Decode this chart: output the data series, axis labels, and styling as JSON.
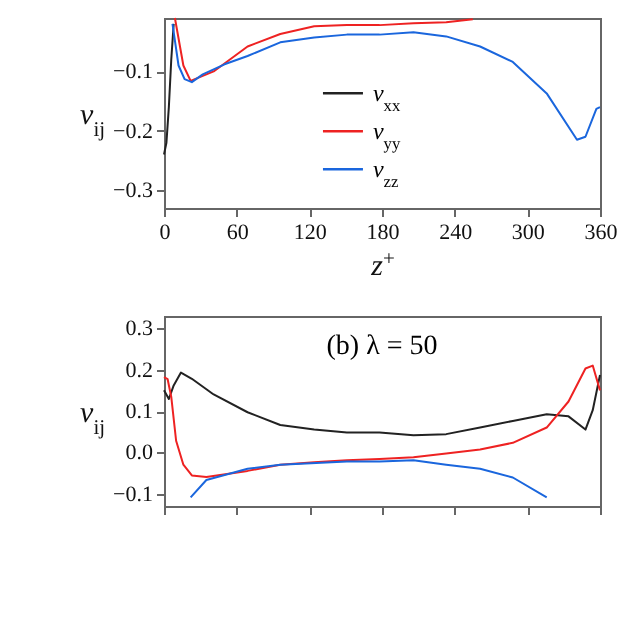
{
  "chart_data": [
    {
      "type": "line",
      "xlabel": "z$^{+}$",
      "ylabel": "v$_{ij}$",
      "xlim": [
        0,
        360
      ],
      "xticks": [
        0,
        60,
        120,
        180,
        240,
        300,
        360
      ],
      "ylim": [
        -0.33,
        -0.01
      ],
      "yticks": [
        -0.1,
        -0.2,
        -0.3
      ],
      "legend": "bottom",
      "series": [
        {
          "name": "v$_{xx}$",
          "color": "#222222",
          "x": [
            0,
            2,
            4,
            6,
            8
          ],
          "values": [
            -0.24,
            -0.22,
            -0.16,
            -0.08,
            -0.02
          ]
        },
        {
          "name": "v$_{yy}$",
          "color": "#ee2222",
          "x": [
            9,
            16,
            22,
            29,
            41,
            69,
            96,
            124,
            151,
            178,
            206,
            233,
            255
          ],
          "values": [
            -0.01,
            -0.09,
            -0.116,
            -0.11,
            -0.1,
            -0.058,
            -0.037,
            -0.024,
            -0.022,
            -0.022,
            -0.019,
            -0.017,
            -0.012
          ]
        },
        {
          "name": "v$_{zz}$",
          "color": "#1a66dd",
          "x": [
            7,
            12,
            17,
            23,
            32,
            50,
            69,
            96,
            124,
            151,
            178,
            206,
            233,
            261,
            288,
            316,
            341,
            348,
            357,
            360
          ],
          "values": [
            -0.02,
            -0.09,
            -0.113,
            -0.118,
            -0.105,
            -0.088,
            -0.074,
            -0.051,
            -0.043,
            -0.038,
            -0.038,
            -0.034,
            -0.041,
            -0.058,
            -0.084,
            -0.137,
            -0.215,
            -0.21,
            -0.163,
            -0.16
          ]
        }
      ]
    },
    {
      "type": "line",
      "ylabel": "v$_{ij}$",
      "annotations": [
        "(b) λ = 50"
      ],
      "xlim": [
        0,
        360
      ],
      "xticks": [
        0,
        60,
        120,
        180,
        240,
        300,
        360
      ],
      "ylim": [
        -0.13,
        0.33
      ],
      "yticks": [
        0.3,
        0.2,
        0.1,
        {
          "value": 0,
          "label": "0.0"
        },
        -0.1
      ],
      "tick_labels": "y",
      "series": [
        {
          "color": "#222222",
          "x": [
            0,
            4,
            8,
            14,
            23,
            41,
            69,
            96,
            124,
            151,
            178,
            206,
            233,
            261,
            288,
            316,
            334,
            348,
            354,
            360
          ],
          "values": [
            0.15,
            0.129,
            0.162,
            0.193,
            0.178,
            0.14,
            0.097,
            0.066,
            0.055,
            0.048,
            0.048,
            0.041,
            0.044,
            0.06,
            0.076,
            0.092,
            0.087,
            0.055,
            0.102,
            0.187
          ]
        },
        {
          "color": "#ee2222",
          "x": [
            0,
            3,
            6,
            10,
            16,
            23,
            35,
            69,
            96,
            124,
            151,
            178,
            206,
            233,
            261,
            288,
            316,
            334,
            348,
            354,
            360
          ],
          "values": [
            0.182,
            0.177,
            0.134,
            0.028,
            -0.03,
            -0.056,
            -0.06,
            -0.045,
            -0.03,
            -0.024,
            -0.019,
            -0.016,
            -0.012,
            -0.003,
            0.007,
            0.023,
            0.06,
            0.123,
            0.203,
            0.21,
            0.15
          ]
        },
        {
          "color": "#1a66dd",
          "x": [
            22,
            35,
            69,
            96,
            151,
            178,
            206,
            233,
            261,
            288,
            316
          ],
          "values": [
            -0.109,
            -0.067,
            -0.04,
            -0.03,
            -0.022,
            -0.022,
            -0.019,
            -0.03,
            -0.04,
            -0.061,
            -0.109
          ]
        }
      ]
    }
  ]
}
